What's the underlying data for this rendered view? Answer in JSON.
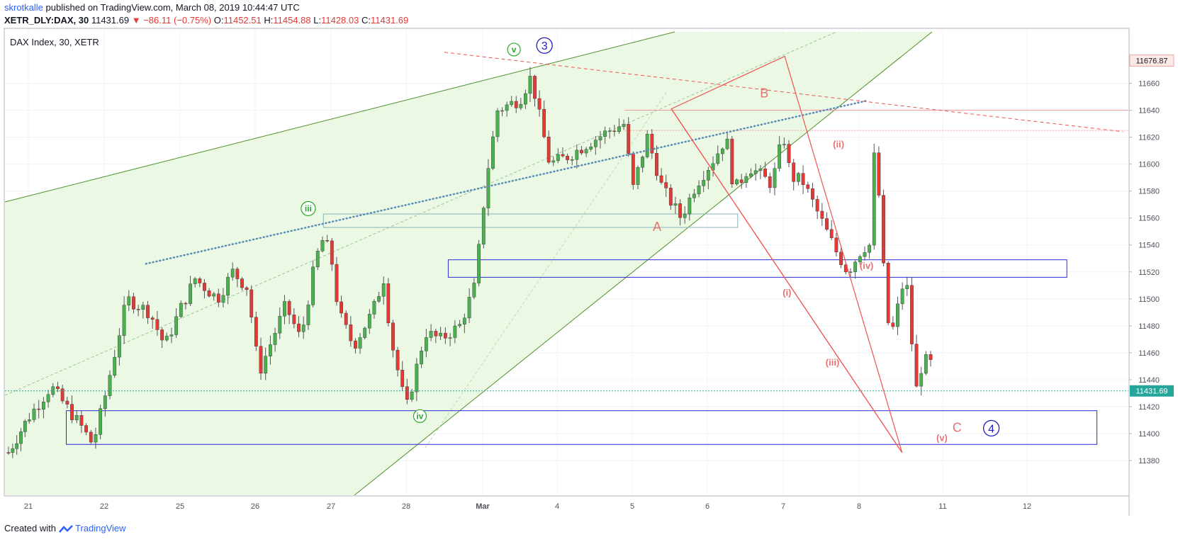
{
  "header": {
    "author": "skrotkalle",
    "published": "published on TradingView.com, March 08, 2019 10:44:47 UTC",
    "symbol": "XETR_DLY:DAX, 30",
    "last": "11431.69",
    "change_arrow": "▼",
    "change": "−86.11 (−0.75%)",
    "o_label": "O:",
    "o": "11452.51",
    "h_label": "H:",
    "h": "11454.88",
    "l_label": "L:",
    "l": "11428.03",
    "c_label": "C:",
    "c": "11431.69"
  },
  "footer": {
    "created_with": "Created with",
    "brand": "TradingView"
  },
  "colors": {
    "up": "#4caf50",
    "down": "#e53935",
    "wick": "#555555",
    "channel": "#4f8f2a",
    "channel_fill": "#e8f8df",
    "wave_red": "#ef5350",
    "wave_green": "#27a82b",
    "wave_blue": "#1f1fbf",
    "box_blue": "#2b2bd6",
    "price_line": "#26a69a"
  },
  "chart_data": {
    "type": "candlestick",
    "title": "DAX Index, 30, XETR",
    "timeframe": "30 min",
    "y_ticks": [
      11380,
      11400,
      11420,
      11440,
      11460,
      11480,
      11500,
      11520,
      11540,
      11560,
      11580,
      11600,
      11620,
      11640,
      11660
    ],
    "ylim": [
      11374,
      11694
    ],
    "x_ticks": [
      {
        "label": "21",
        "t": 0.3
      },
      {
        "label": "22",
        "t": 1.3
      },
      {
        "label": "25",
        "t": 2.3
      },
      {
        "label": "26",
        "t": 3.3
      },
      {
        "label": "27",
        "t": 4.3
      },
      {
        "label": "28",
        "t": 5.3
      },
      {
        "label": "Mar",
        "t": 6.3
      },
      {
        "label": "4",
        "t": 7.3
      },
      {
        "label": "5",
        "t": 8.3
      },
      {
        "label": "6",
        "t": 9.3
      },
      {
        "label": "7",
        "t": 10.3
      },
      {
        "label": "8",
        "t": 11.3
      },
      {
        "label": "11",
        "t": 12.41
      },
      {
        "label": "12",
        "t": 13.52
      }
    ],
    "xlim": [
      0,
      14.85
    ],
    "price_tags": [
      {
        "label": "11676.87",
        "value": 11676.87,
        "style": "high"
      },
      {
        "label": "11431.69",
        "value": 11431.69,
        "style": "last"
      }
    ],
    "anchors": [
      {
        "t": 0,
        "v": 11386
      },
      {
        "t": 0.3,
        "v": 11412
      },
      {
        "t": 0.6,
        "v": 11435
      },
      {
        "t": 1.0,
        "v": 11405
      },
      {
        "t": 1.15,
        "v": 11392
      },
      {
        "t": 1.3,
        "v": 11425
      },
      {
        "t": 1.6,
        "v": 11500
      },
      {
        "t": 1.9,
        "v": 11490
      },
      {
        "t": 2.1,
        "v": 11465
      },
      {
        "t": 2.3,
        "v": 11492
      },
      {
        "t": 2.5,
        "v": 11515
      },
      {
        "t": 2.8,
        "v": 11500
      },
      {
        "t": 3.0,
        "v": 11520
      },
      {
        "t": 3.2,
        "v": 11508
      },
      {
        "t": 3.35,
        "v": 11445
      },
      {
        "t": 3.7,
        "v": 11495
      },
      {
        "t": 3.9,
        "v": 11470
      },
      {
        "t": 4.1,
        "v": 11530
      },
      {
        "t": 4.2,
        "v": 11545
      },
      {
        "t": 4.3,
        "v": 11532
      },
      {
        "t": 4.4,
        "v": 11490
      },
      {
        "t": 4.6,
        "v": 11465
      },
      {
        "t": 4.85,
        "v": 11490
      },
      {
        "t": 5.0,
        "v": 11515
      },
      {
        "t": 5.1,
        "v": 11470
      },
      {
        "t": 5.3,
        "v": 11418
      },
      {
        "t": 5.55,
        "v": 11475
      },
      {
        "t": 5.75,
        "v": 11470
      },
      {
        "t": 6.0,
        "v": 11480
      },
      {
        "t": 6.2,
        "v": 11510
      },
      {
        "t": 6.35,
        "v": 11590
      },
      {
        "t": 6.5,
        "v": 11640
      },
      {
        "t": 6.8,
        "v": 11648
      },
      {
        "t": 6.95,
        "v": 11665
      },
      {
        "t": 7.2,
        "v": 11600
      },
      {
        "t": 7.45,
        "v": 11606
      },
      {
        "t": 7.7,
        "v": 11615
      },
      {
        "t": 8.0,
        "v": 11625
      },
      {
        "t": 8.2,
        "v": 11630
      },
      {
        "t": 8.3,
        "v": 11580
      },
      {
        "t": 8.5,
        "v": 11620
      },
      {
        "t": 8.7,
        "v": 11582
      },
      {
        "t": 8.95,
        "v": 11560
      },
      {
        "t": 9.15,
        "v": 11585
      },
      {
        "t": 9.4,
        "v": 11605
      },
      {
        "t": 9.55,
        "v": 11620
      },
      {
        "t": 9.65,
        "v": 11580
      },
      {
        "t": 9.85,
        "v": 11598
      },
      {
        "t": 10.0,
        "v": 11592
      },
      {
        "t": 10.15,
        "v": 11585
      },
      {
        "t": 10.3,
        "v": 11622
      },
      {
        "t": 10.4,
        "v": 11590
      },
      {
        "t": 10.55,
        "v": 11588
      },
      {
        "t": 11.0,
        "v": 11535
      },
      {
        "t": 11.15,
        "v": 11520
      },
      {
        "t": 11.35,
        "v": 11538
      },
      {
        "t": 11.45,
        "v": 11540
      },
      {
        "t": 11.5,
        "v": 11605
      },
      {
        "t": 11.6,
        "v": 11560
      },
      {
        "t": 11.65,
        "v": 11485
      },
      {
        "t": 11.75,
        "v": 11478
      },
      {
        "t": 11.9,
        "v": 11515
      },
      {
        "t": 11.95,
        "v": 11505
      },
      {
        "t": 12.05,
        "v": 11430
      },
      {
        "t": 12.15,
        "v": 11455
      },
      {
        "t": 12.25,
        "v": 11452
      },
      {
        "t": 12.3,
        "v": 11431.69
      }
    ],
    "annotations": {
      "waves": [
        {
          "text": "v",
          "t": 6.72,
          "v": 11685,
          "style": "green-circle"
        },
        {
          "text": "iii",
          "t": 4.0,
          "v": 11567,
          "style": "green-circle"
        },
        {
          "text": "iv",
          "t": 5.48,
          "v": 11413,
          "style": "green-circle"
        },
        {
          "text": "3",
          "t": 7.13,
          "v": 11688,
          "style": "blue-circle"
        },
        {
          "text": "4",
          "t": 13.05,
          "v": 11404,
          "style": "blue-circle"
        },
        {
          "text": "A",
          "t": 8.63,
          "v": 11553,
          "style": "red"
        },
        {
          "text": "B",
          "t": 10.05,
          "v": 11652,
          "style": "red"
        },
        {
          "text": "C",
          "t": 12.6,
          "v": 11404,
          "style": "red"
        },
        {
          "text": "(i)",
          "t": 10.35,
          "v": 11505,
          "style": "red-small"
        },
        {
          "text": "(ii)",
          "t": 11.03,
          "v": 11615,
          "style": "red-small"
        },
        {
          "text": "(iii)",
          "t": 10.95,
          "v": 11453,
          "style": "red-small"
        },
        {
          "text": "(iv)",
          "t": 11.4,
          "v": 11525,
          "style": "red-small"
        },
        {
          "text": "(v)",
          "t": 12.4,
          "v": 11397,
          "style": "red-small"
        }
      ]
    }
  }
}
